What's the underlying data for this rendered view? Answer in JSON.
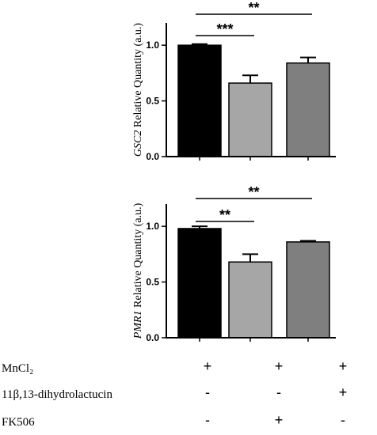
{
  "chart_data": [
    {
      "type": "bar",
      "ylabel_italic": "GSC2",
      "ylabel_rest": " Relative Quantity (a.u.)",
      "ylim": [
        0,
        1.2
      ],
      "yticks": [
        "0.0",
        "0.5",
        "1.0"
      ],
      "ytick_values": [
        0,
        0.5,
        1.0
      ],
      "values": [
        1.0,
        0.66,
        0.84
      ],
      "errors": [
        0.01,
        0.07,
        0.05
      ],
      "colors": [
        "#000000",
        "#a6a6a6",
        "#7f7f7f"
      ],
      "significance": [
        {
          "from": 0,
          "to": 1,
          "label": "***"
        },
        {
          "from": 0,
          "to": 2,
          "label": "**"
        }
      ]
    },
    {
      "type": "bar",
      "ylabel_italic": "PMR1",
      "ylabel_rest": " Relative Quantity (a.u.)",
      "ylim": [
        0,
        1.2
      ],
      "yticks": [
        "0.0",
        "0.5",
        "1.0"
      ],
      "ytick_values": [
        0,
        0.5,
        1.0
      ],
      "values": [
        0.98,
        0.68,
        0.86
      ],
      "errors": [
        0.02,
        0.07,
        0.01
      ],
      "colors": [
        "#000000",
        "#a6a6a6",
        "#7f7f7f"
      ],
      "significance": [
        {
          "from": 0,
          "to": 1,
          "label": "**"
        },
        {
          "from": 0,
          "to": 2,
          "label": "**"
        }
      ]
    }
  ],
  "conditions": [
    {
      "label": "MnCl₂",
      "marks": [
        "+",
        "+",
        "+"
      ]
    },
    {
      "label": "11β,13-dihydrolactucin",
      "marks": [
        "-",
        "-",
        "+"
      ]
    },
    {
      "label": "FK506",
      "marks": [
        "-",
        "+",
        "-"
      ]
    }
  ]
}
